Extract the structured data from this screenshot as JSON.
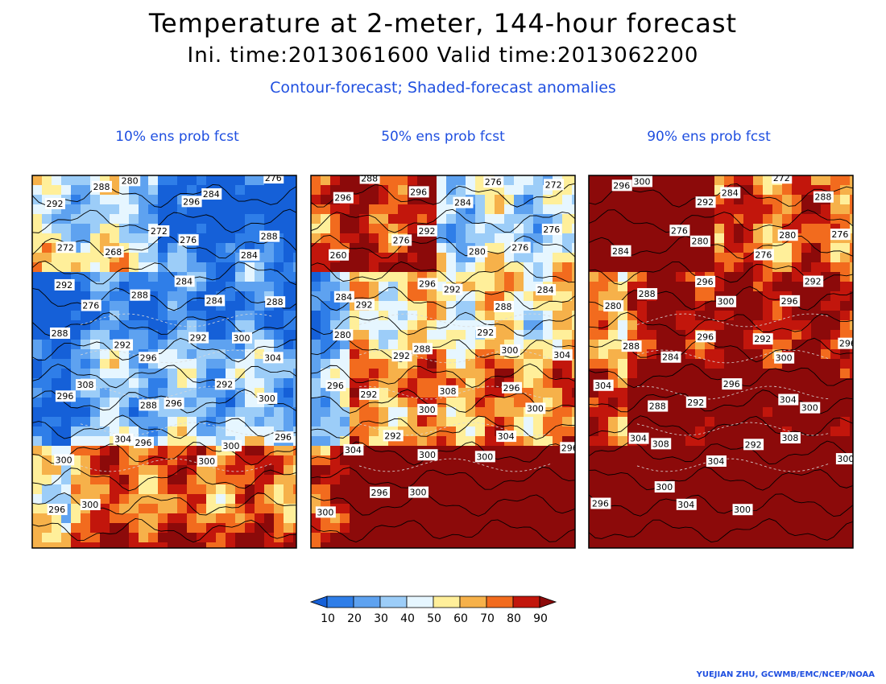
{
  "title_line1": "Temperature at 2-meter, 144-hour forecast",
  "title_line2": "Ini. time:2013061600    Valid time:2013062200",
  "subtitle": "Contour-forecast; Shaded-forecast anomalies",
  "panels": [
    {
      "title": "10% ens prob fcst",
      "warmth": 0.15,
      "labels": [
        "292",
        "288",
        "280",
        "296",
        "284",
        "276",
        "272",
        "268",
        "272",
        "276",
        "284",
        "288",
        "292",
        "276",
        "288",
        "284",
        "284",
        "288",
        "288",
        "292",
        "296",
        "292",
        "300",
        "304",
        "296",
        "308",
        "288",
        "296",
        "292",
        "300",
        "300",
        "304",
        "296",
        "300",
        "300",
        "296",
        "296",
        "300"
      ]
    },
    {
      "title": "50% ens prob fcst",
      "warmth": 0.5,
      "labels": [
        "296",
        "288",
        "296",
        "284",
        "276",
        "272",
        "260",
        "276",
        "292",
        "280",
        "276",
        "276",
        "284",
        "292",
        "296",
        "292",
        "288",
        "284",
        "280",
        "292",
        "288",
        "292",
        "300",
        "304",
        "296",
        "292",
        "300",
        "308",
        "296",
        "300",
        "304",
        "292",
        "300",
        "300",
        "304",
        "296",
        "300",
        "296",
        "300"
      ]
    },
    {
      "title": "90% ens prob fcst",
      "warmth": 0.85,
      "labels": [
        "296",
        "300",
        "292",
        "284",
        "272",
        "288",
        "284",
        "276",
        "280",
        "276",
        "280",
        "276",
        "280",
        "288",
        "296",
        "300",
        "296",
        "292",
        "288",
        "284",
        "296",
        "292",
        "300",
        "296",
        "304",
        "288",
        "292",
        "296",
        "304",
        "300",
        "304",
        "308",
        "304",
        "292",
        "308",
        "300",
        "296",
        "300",
        "304",
        "300"
      ]
    }
  ],
  "colorbar": {
    "ticks": [
      "10",
      "20",
      "30",
      "40",
      "50",
      "60",
      "70",
      "80",
      "90"
    ],
    "colors": [
      "#1560d8",
      "#2f7ee8",
      "#5ea2f0",
      "#9ccdf8",
      "#e6f6ff",
      "#ffef9a",
      "#f6b14a",
      "#f26b1e",
      "#c2160c",
      "#8c0a0a"
    ]
  },
  "credit": "YUEJIAN ZHU, GCWMB/EMC/NCEP/NOAA"
}
